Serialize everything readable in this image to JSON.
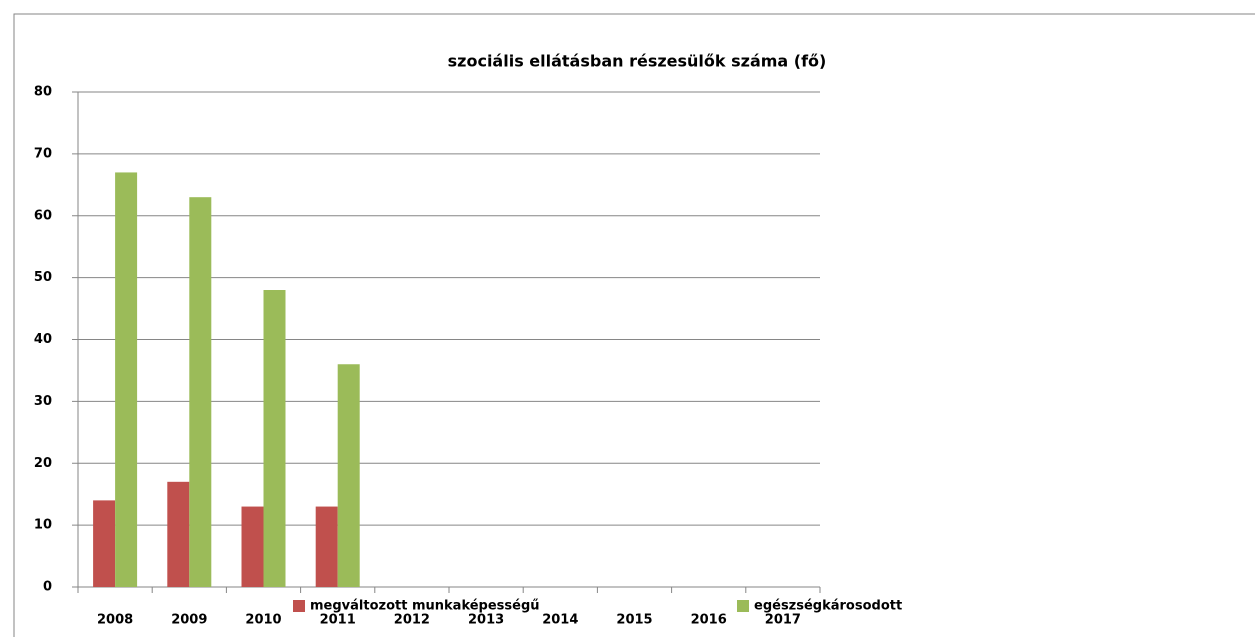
{
  "chart_data": {
    "type": "bar",
    "title": "szociális ellátásban részesülők száma (fő)",
    "categories": [
      "2008",
      "2009",
      "2010",
      "2011",
      "2012",
      "2013",
      "2014",
      "2015",
      "2016",
      "2017"
    ],
    "series": [
      {
        "name": "megváltozott munkaképességű",
        "color": "#c0504d",
        "values": [
          14,
          17,
          13,
          13,
          null,
          null,
          null,
          null,
          null,
          null
        ]
      },
      {
        "name": "egészségkárosodott",
        "color": "#9bbb59",
        "values": [
          67,
          63,
          48,
          36,
          null,
          null,
          null,
          null,
          null,
          null
        ]
      }
    ],
    "ylim": [
      0,
      80
    ],
    "yticks": [
      0,
      10,
      20,
      30,
      40,
      50,
      60,
      70,
      80
    ],
    "grid": true,
    "legend": "bottom"
  }
}
